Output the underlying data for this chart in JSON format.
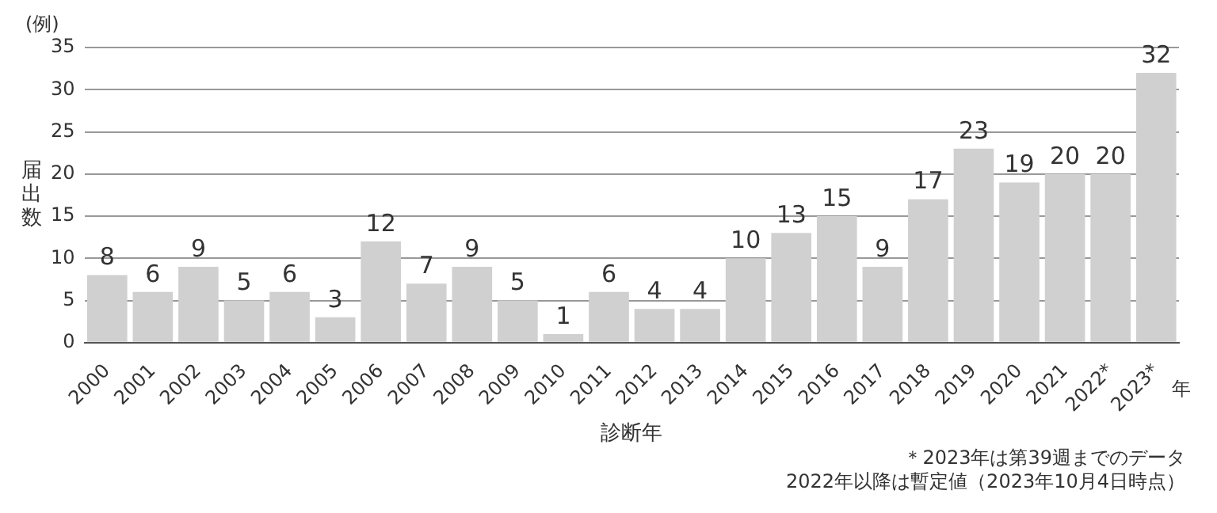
{
  "chart_data": {
    "type": "bar",
    "ylabel": "届出数",
    "xlabel": "診断年",
    "annotations": [
      "(例)",
      "年",
      "＊2023年は第39週までのデータ",
      "2022年以降は暫定値（2023年10月4日時点）"
    ],
    "categories": [
      "2000",
      "2001",
      "2002",
      "2003",
      "2004",
      "2005",
      "2006",
      "2007",
      "2008",
      "2009",
      "2010",
      "2011",
      "2012",
      "2013",
      "2014",
      "2015",
      "2016",
      "2017",
      "2018",
      "2019",
      "2020",
      "2021",
      "2022*",
      "2023*"
    ],
    "values": [
      8,
      6,
      9,
      5,
      6,
      3,
      12,
      7,
      9,
      5,
      1,
      6,
      4,
      4,
      10,
      13,
      15,
      9,
      17,
      23,
      19,
      20,
      20,
      32
    ],
    "color": "#d0d0d0",
    "ylim": [
      0,
      35
    ],
    "yticks": [
      0,
      5,
      10,
      15,
      20,
      25,
      30,
      35
    ],
    "grid": "y",
    "data_labels": true,
    "legend": false
  }
}
